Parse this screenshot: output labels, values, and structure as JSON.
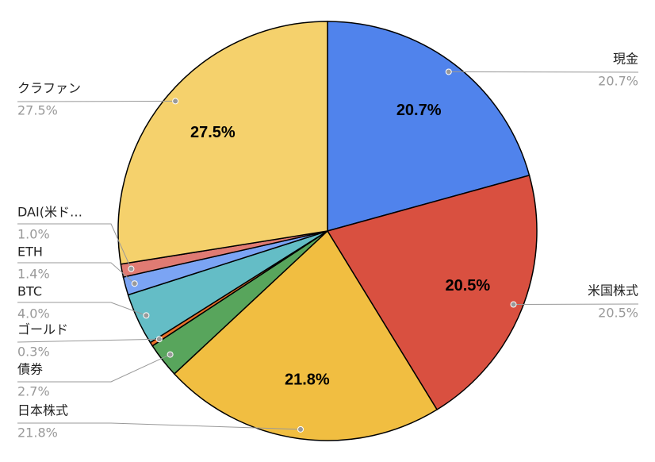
{
  "chart_data": {
    "type": "pie",
    "categories": [
      "現金",
      "米国株式",
      "日本株式",
      "債券",
      "ゴールド",
      "BTC",
      "ETH",
      "DAI(米ド…",
      "クラファン"
    ],
    "values": [
      20.7,
      20.5,
      21.8,
      2.7,
      0.3,
      4.0,
      1.4,
      1.0,
      27.5
    ],
    "value_labels": [
      "20.7%",
      "20.5%",
      "21.8%",
      "2.7%",
      "0.3%",
      "4.0%",
      "1.4%",
      "1.0%",
      "27.5%"
    ],
    "colors": [
      "#5083ec",
      "#d95040",
      "#f1be41",
      "#58a55c",
      "#e8712b",
      "#64bdc6",
      "#7ba4f4",
      "#e07b73",
      "#f5d16c"
    ]
  }
}
